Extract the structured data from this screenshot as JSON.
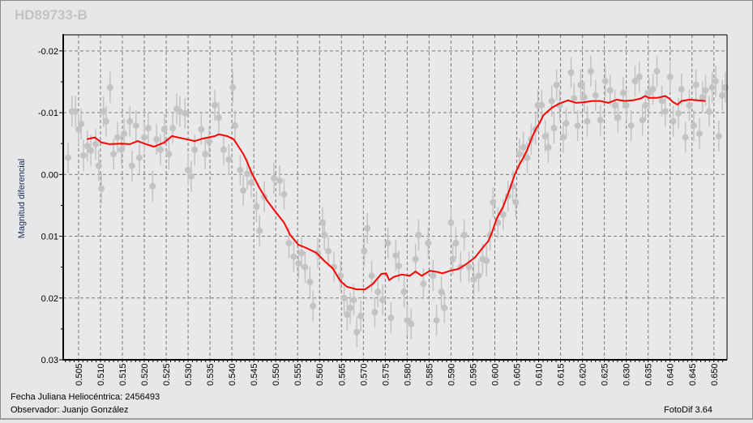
{
  "window": {
    "title": "HD89733-B"
  },
  "footer": {
    "date_label": "Fecha Juliana Heliocéntrica: 2456493",
    "observer_label": "Observador: Juanjo González",
    "software": "FotoDif 3.64"
  },
  "colors": {
    "points": "#c3c3c3",
    "line": "#ff0000",
    "grid": "#7a7a7a",
    "background": "#e6e7e8"
  },
  "chart_data": {
    "type": "scatter",
    "title": "HD89733-B",
    "xlabel": "Fecha Juliana Heliocéntrica: 2456493",
    "ylabel": "Magnitud diferencial",
    "xlim": [
      0.5015,
      0.653
    ],
    "ylim": [
      0.03,
      -0.0226
    ],
    "y_inverted": true,
    "grid": true,
    "xticks": [
      "0.505",
      "0.510",
      "0.515",
      "0.520",
      "0.525",
      "0.530",
      "0.535",
      "0.540",
      "0.545",
      "0.550",
      "0.555",
      "0.560",
      "0.565",
      "0.570",
      "0.575",
      "0.580",
      "0.585",
      "0.590",
      "0.595",
      "0.600",
      "0.605",
      "0.610",
      "0.615",
      "0.620",
      "0.625",
      "0.630",
      "0.635",
      "0.640",
      "0.645",
      "0.650"
    ],
    "yticks": [
      "-0.02",
      "-0.01",
      "0.00",
      "0.01",
      "0.02",
      "0.03"
    ],
    "error_bar": 0.0025,
    "series": [
      {
        "name": "observations",
        "kind": "points_with_errorbars",
        "points": [
          [
            0.5026,
            -0.0027
          ],
          [
            0.5035,
            -0.0102
          ],
          [
            0.5043,
            -0.0102
          ],
          [
            0.505,
            -0.0073
          ],
          [
            0.5056,
            -0.0082
          ],
          [
            0.5061,
            -0.0031
          ],
          [
            0.507,
            -0.0046
          ],
          [
            0.5078,
            -0.0039
          ],
          [
            0.5089,
            -0.0049
          ],
          [
            0.5096,
            -0.0014
          ],
          [
            0.5102,
            0.0023
          ],
          [
            0.5107,
            -0.0102
          ],
          [
            0.5113,
            -0.0086
          ],
          [
            0.5122,
            -0.0141
          ],
          [
            0.513,
            -0.0033
          ],
          [
            0.5139,
            -0.006
          ],
          [
            0.5148,
            -0.004
          ],
          [
            0.5154,
            -0.0066
          ],
          [
            0.5167,
            -0.0086
          ],
          [
            0.5172,
            -0.0014
          ],
          [
            0.5181,
            -0.0079
          ],
          [
            0.5189,
            -0.0027
          ],
          [
            0.52,
            -0.006
          ],
          [
            0.5209,
            -0.0075
          ],
          [
            0.5219,
            0.0019
          ],
          [
            0.5228,
            -0.0057
          ],
          [
            0.5237,
            -0.004
          ],
          [
            0.5246,
            -0.0073
          ],
          [
            0.5256,
            -0.0033
          ],
          [
            0.5265,
            -0.0075
          ],
          [
            0.5274,
            -0.0106
          ],
          [
            0.5281,
            -0.0102
          ],
          [
            0.5293,
            -0.0099
          ],
          [
            0.53,
            -0.0007
          ],
          [
            0.5307,
            0.0003
          ],
          [
            0.5315,
            -0.004
          ],
          [
            0.533,
            -0.0073
          ],
          [
            0.5339,
            -0.0033
          ],
          [
            0.5348,
            -0.0053
          ],
          [
            0.5361,
            -0.0112
          ],
          [
            0.537,
            -0.0092
          ],
          [
            0.5381,
            -0.004
          ],
          [
            0.5393,
            -0.0024
          ],
          [
            0.5402,
            -0.0141
          ],
          [
            0.5407,
            -0.0079
          ],
          [
            0.5419,
            -0.0007
          ],
          [
            0.5426,
            0.0026
          ],
          [
            0.5435,
            -0.0001
          ],
          [
            0.5444,
            0.0013
          ],
          [
            0.5456,
            0.0052
          ],
          [
            0.5463,
            0.0091
          ],
          [
            0.5474,
            0.0036
          ],
          [
            0.5496,
            0.0006
          ],
          [
            0.5509,
            0.001
          ],
          [
            0.5519,
            0.0032
          ],
          [
            0.553,
            0.0111
          ],
          [
            0.5541,
            0.0133
          ],
          [
            0.5552,
            0.0144
          ],
          [
            0.5559,
            0.0127
          ],
          [
            0.5567,
            0.015
          ],
          [
            0.5578,
            0.0174
          ],
          [
            0.5585,
            0.0213
          ],
          [
            0.5596,
            0.0127
          ],
          [
            0.5607,
            0.0078
          ],
          [
            0.5611,
            0.0098
          ],
          [
            0.562,
            0.0124
          ],
          [
            0.5633,
            0.015
          ],
          [
            0.5648,
            0.0164
          ],
          [
            0.5656,
            0.02
          ],
          [
            0.5663,
            0.0227
          ],
          [
            0.567,
            0.0216
          ],
          [
            0.5678,
            0.0203
          ],
          [
            0.5685,
            0.0255
          ],
          [
            0.5694,
            0.0229
          ],
          [
            0.5702,
            0.0124
          ],
          [
            0.5709,
            0.0087
          ],
          [
            0.5719,
            0.0164
          ],
          [
            0.5726,
            0.0223
          ],
          [
            0.5733,
            0.019
          ],
          [
            0.5744,
            0.0203
          ],
          [
            0.5756,
            0.0111
          ],
          [
            0.5763,
            0.0232
          ],
          [
            0.5774,
            0.0131
          ],
          [
            0.5781,
            0.0148
          ],
          [
            0.5793,
            0.019
          ],
          [
            0.58,
            0.0236
          ],
          [
            0.5809,
            0.0242
          ],
          [
            0.5819,
            0.0137
          ],
          [
            0.5826,
            0.0098
          ],
          [
            0.5837,
            0.0177
          ],
          [
            0.5848,
            0.0111
          ],
          [
            0.5859,
            0.0164
          ],
          [
            0.5867,
            0.0236
          ],
          [
            0.5878,
            0.019
          ],
          [
            0.5885,
            0.0216
          ],
          [
            0.59,
            0.0078
          ],
          [
            0.5904,
            0.0137
          ],
          [
            0.5911,
            0.0111
          ],
          [
            0.5922,
            0.015
          ],
          [
            0.593,
            0.0098
          ],
          [
            0.5941,
            0.015
          ],
          [
            0.5952,
            0.017
          ],
          [
            0.5963,
            0.0164
          ],
          [
            0.5972,
            0.0137
          ],
          [
            0.5981,
            0.014
          ],
          [
            0.5989,
            0.0098
          ],
          [
            0.5996,
            0.0045
          ],
          [
            0.6007,
            0.0078
          ],
          [
            0.6019,
            0.0065
          ],
          [
            0.603,
            0.0035
          ],
          [
            0.6041,
            0.0019
          ],
          [
            0.6048,
            0.0045
          ],
          [
            0.6056,
            -0.0033
          ],
          [
            0.6065,
            -0.0044
          ],
          [
            0.6074,
            -0.0027
          ],
          [
            0.6083,
            -0.0057
          ],
          [
            0.6093,
            -0.0073
          ],
          [
            0.6098,
            -0.0112
          ],
          [
            0.6107,
            -0.0112
          ],
          [
            0.6115,
            -0.0062
          ],
          [
            0.6122,
            -0.0044
          ],
          [
            0.613,
            -0.0119
          ],
          [
            0.6135,
            -0.0075
          ],
          [
            0.6141,
            -0.0145
          ],
          [
            0.6148,
            -0.0112
          ],
          [
            0.6156,
            -0.006
          ],
          [
            0.6163,
            -0.0083
          ],
          [
            0.6174,
            -0.0165
          ],
          [
            0.6181,
            -0.0123
          ],
          [
            0.6189,
            -0.0079
          ],
          [
            0.6196,
            -0.0145
          ],
          [
            0.6204,
            -0.0125
          ],
          [
            0.6211,
            -0.0086
          ],
          [
            0.6219,
            -0.0167
          ],
          [
            0.623,
            -0.0128
          ],
          [
            0.6241,
            -0.0088
          ],
          [
            0.6252,
            -0.0151
          ],
          [
            0.6263,
            -0.0136
          ],
          [
            0.6274,
            -0.0112
          ],
          [
            0.6281,
            -0.0092
          ],
          [
            0.6293,
            -0.0132
          ],
          [
            0.63,
            -0.0112
          ],
          [
            0.6311,
            -0.0079
          ],
          [
            0.632,
            -0.0151
          ],
          [
            0.633,
            -0.0158
          ],
          [
            0.6337,
            -0.0088
          ],
          [
            0.6344,
            -0.0112
          ],
          [
            0.6352,
            -0.0132
          ],
          [
            0.6361,
            -0.0138
          ],
          [
            0.637,
            -0.0167
          ],
          [
            0.6381,
            -0.0119
          ],
          [
            0.6389,
            -0.0102
          ],
          [
            0.64,
            -0.0158
          ],
          [
            0.6407,
            -0.0086
          ],
          [
            0.6419,
            -0.0099
          ],
          [
            0.6426,
            -0.0138
          ],
          [
            0.6435,
            -0.006
          ],
          [
            0.6444,
            -0.0112
          ],
          [
            0.6454,
            -0.0079
          ],
          [
            0.6459,
            -0.0145
          ],
          [
            0.6467,
            -0.0066
          ],
          [
            0.6474,
            -0.0125
          ],
          [
            0.6481,
            -0.0136
          ],
          [
            0.6489,
            -0.0102
          ],
          [
            0.6496,
            -0.0141
          ],
          [
            0.6504,
            -0.0151
          ],
          [
            0.6511,
            -0.0062
          ],
          [
            0.6519,
            -0.0128
          ],
          [
            0.6526,
            -0.0141
          ]
        ]
      },
      {
        "name": "moving-average",
        "kind": "line",
        "points": [
          [
            0.5069,
            -0.0057
          ],
          [
            0.5087,
            -0.006
          ],
          [
            0.5102,
            -0.0052
          ],
          [
            0.512,
            -0.0049
          ],
          [
            0.5148,
            -0.005
          ],
          [
            0.5167,
            -0.0049
          ],
          [
            0.5185,
            -0.0054
          ],
          [
            0.5204,
            -0.0049
          ],
          [
            0.5222,
            -0.0045
          ],
          [
            0.5246,
            -0.0052
          ],
          [
            0.5263,
            -0.0062
          ],
          [
            0.5296,
            -0.0057
          ],
          [
            0.5315,
            -0.0054
          ],
          [
            0.5333,
            -0.0058
          ],
          [
            0.5361,
            -0.0062
          ],
          [
            0.537,
            -0.0065
          ],
          [
            0.5389,
            -0.0062
          ],
          [
            0.5404,
            -0.0057
          ],
          [
            0.5417,
            -0.0043
          ],
          [
            0.5426,
            -0.0033
          ],
          [
            0.5435,
            -0.002
          ],
          [
            0.5444,
            -0.0004
          ],
          [
            0.5463,
            0.0022
          ],
          [
            0.5481,
            0.0043
          ],
          [
            0.55,
            0.0061
          ],
          [
            0.5519,
            0.0078
          ],
          [
            0.5533,
            0.0098
          ],
          [
            0.5552,
            0.0114
          ],
          [
            0.557,
            0.0119
          ],
          [
            0.5593,
            0.0127
          ],
          [
            0.5611,
            0.014
          ],
          [
            0.563,
            0.0152
          ],
          [
            0.5648,
            0.0173
          ],
          [
            0.5663,
            0.0182
          ],
          [
            0.5685,
            0.0186
          ],
          [
            0.5704,
            0.0186
          ],
          [
            0.5722,
            0.0177
          ],
          [
            0.5741,
            0.0161
          ],
          [
            0.5752,
            0.016
          ],
          [
            0.5759,
            0.0171
          ],
          [
            0.5769,
            0.0166
          ],
          [
            0.5787,
            0.0162
          ],
          [
            0.5806,
            0.0164
          ],
          [
            0.5819,
            0.0157
          ],
          [
            0.5833,
            0.0164
          ],
          [
            0.5852,
            0.0156
          ],
          [
            0.587,
            0.0158
          ],
          [
            0.588,
            0.016
          ],
          [
            0.5898,
            0.0156
          ],
          [
            0.5917,
            0.0153
          ],
          [
            0.5935,
            0.0145
          ],
          [
            0.5954,
            0.0135
          ],
          [
            0.5972,
            0.0119
          ],
          [
            0.5985,
            0.0108
          ],
          [
            0.5994,
            0.0093
          ],
          [
            0.6004,
            0.0072
          ],
          [
            0.6019,
            0.0052
          ],
          [
            0.6033,
            0.0026
          ],
          [
            0.6046,
            -0.0001
          ],
          [
            0.6056,
            -0.0016
          ],
          [
            0.6065,
            -0.0027
          ],
          [
            0.6074,
            -0.004
          ],
          [
            0.6083,
            -0.0057
          ],
          [
            0.6093,
            -0.0073
          ],
          [
            0.6102,
            -0.0083
          ],
          [
            0.6111,
            -0.0096
          ],
          [
            0.613,
            -0.0108
          ],
          [
            0.6148,
            -0.0115
          ],
          [
            0.6167,
            -0.012
          ],
          [
            0.6185,
            -0.0116
          ],
          [
            0.6204,
            -0.0117
          ],
          [
            0.6222,
            -0.0119
          ],
          [
            0.6241,
            -0.0119
          ],
          [
            0.6259,
            -0.0116
          ],
          [
            0.6278,
            -0.0121
          ],
          [
            0.6296,
            -0.0119
          ],
          [
            0.6315,
            -0.012
          ],
          [
            0.6333,
            -0.0123
          ],
          [
            0.6343,
            -0.0127
          ],
          [
            0.6352,
            -0.0124
          ],
          [
            0.637,
            -0.0124
          ],
          [
            0.6389,
            -0.0127
          ],
          [
            0.6398,
            -0.0123
          ],
          [
            0.6407,
            -0.0117
          ],
          [
            0.6417,
            -0.0113
          ],
          [
            0.6426,
            -0.0119
          ],
          [
            0.6444,
            -0.0121
          ],
          [
            0.6463,
            -0.012
          ],
          [
            0.6481,
            -0.0119
          ]
        ]
      }
    ]
  }
}
